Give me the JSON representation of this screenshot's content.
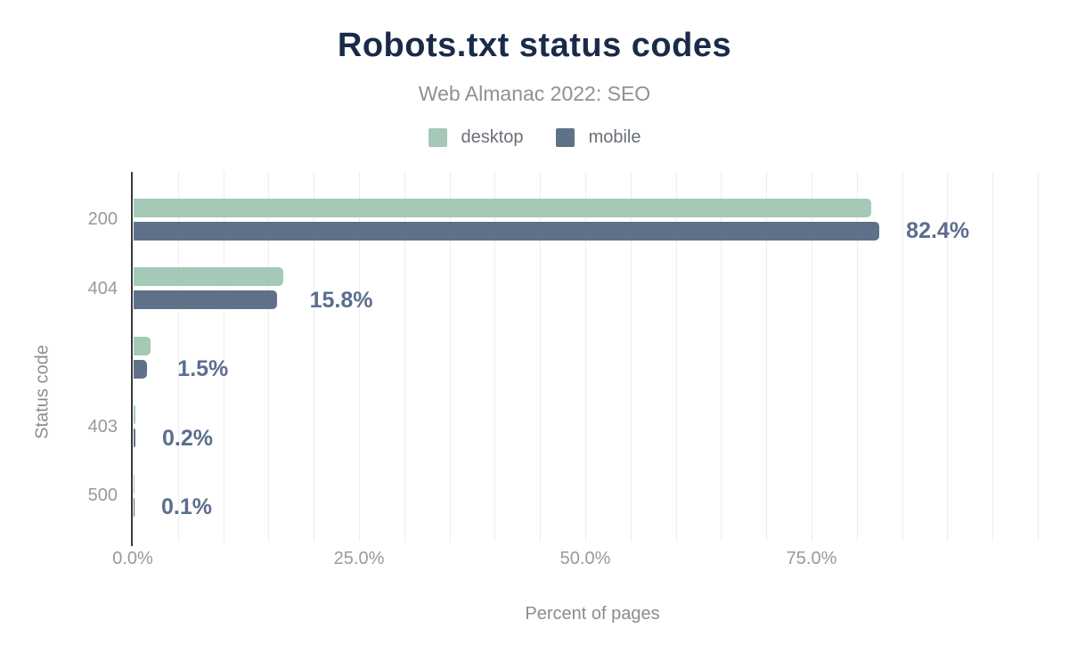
{
  "header": {
    "title": "Robots.txt status codes",
    "subtitle": "Web Almanac 2022: SEO"
  },
  "legend": [
    {
      "label": "desktop",
      "color": "#a4c9b6"
    },
    {
      "label": "mobile",
      "color": "#5f7189"
    }
  ],
  "axes": {
    "y_title": "Status code",
    "x_title": "Percent of pages",
    "x_ticks": [
      {
        "label": "0.0%",
        "value": 0
      },
      {
        "label": "25.0%",
        "value": 25
      },
      {
        "label": "50.0%",
        "value": 50
      },
      {
        "label": "75.0%",
        "value": 75
      }
    ],
    "x_max": 100,
    "minor_grid_step_percent": 5
  },
  "chart_data": {
    "type": "bar",
    "orientation": "horizontal",
    "title": "Robots.txt status codes",
    "subtitle": "Web Almanac 2022: SEO",
    "xlabel": "Percent of pages",
    "ylabel": "Status code",
    "xlim": [
      0,
      100
    ],
    "grid": "vertical-minor-5pct",
    "legend_position": "top",
    "categories": [
      "200",
      "404",
      "",
      "403",
      "500"
    ],
    "series": [
      {
        "name": "desktop",
        "color": "#a4c9b6",
        "values": [
          81.5,
          16.5,
          1.9,
          0.2,
          0.1
        ]
      },
      {
        "name": "mobile",
        "color": "#5f7189",
        "values": [
          82.4,
          15.8,
          1.5,
          0.2,
          0.1
        ]
      }
    ],
    "value_labels": [
      "82.4%",
      "15.8%",
      "1.5%",
      "0.2%",
      "0.1%"
    ]
  },
  "colors": {
    "title": "#1a2b49",
    "subtitle_text": "#8e9196",
    "desktop_bar": "#a4c9b6",
    "mobile_bar": "#5f7189",
    "value_label_text": "#5b6e8d",
    "axis_line": "#3a3a3c",
    "gridline": "#ededef",
    "tick_text": "#97999c",
    "axis_title_text": "#8a8d90",
    "background": "#ffffff"
  }
}
